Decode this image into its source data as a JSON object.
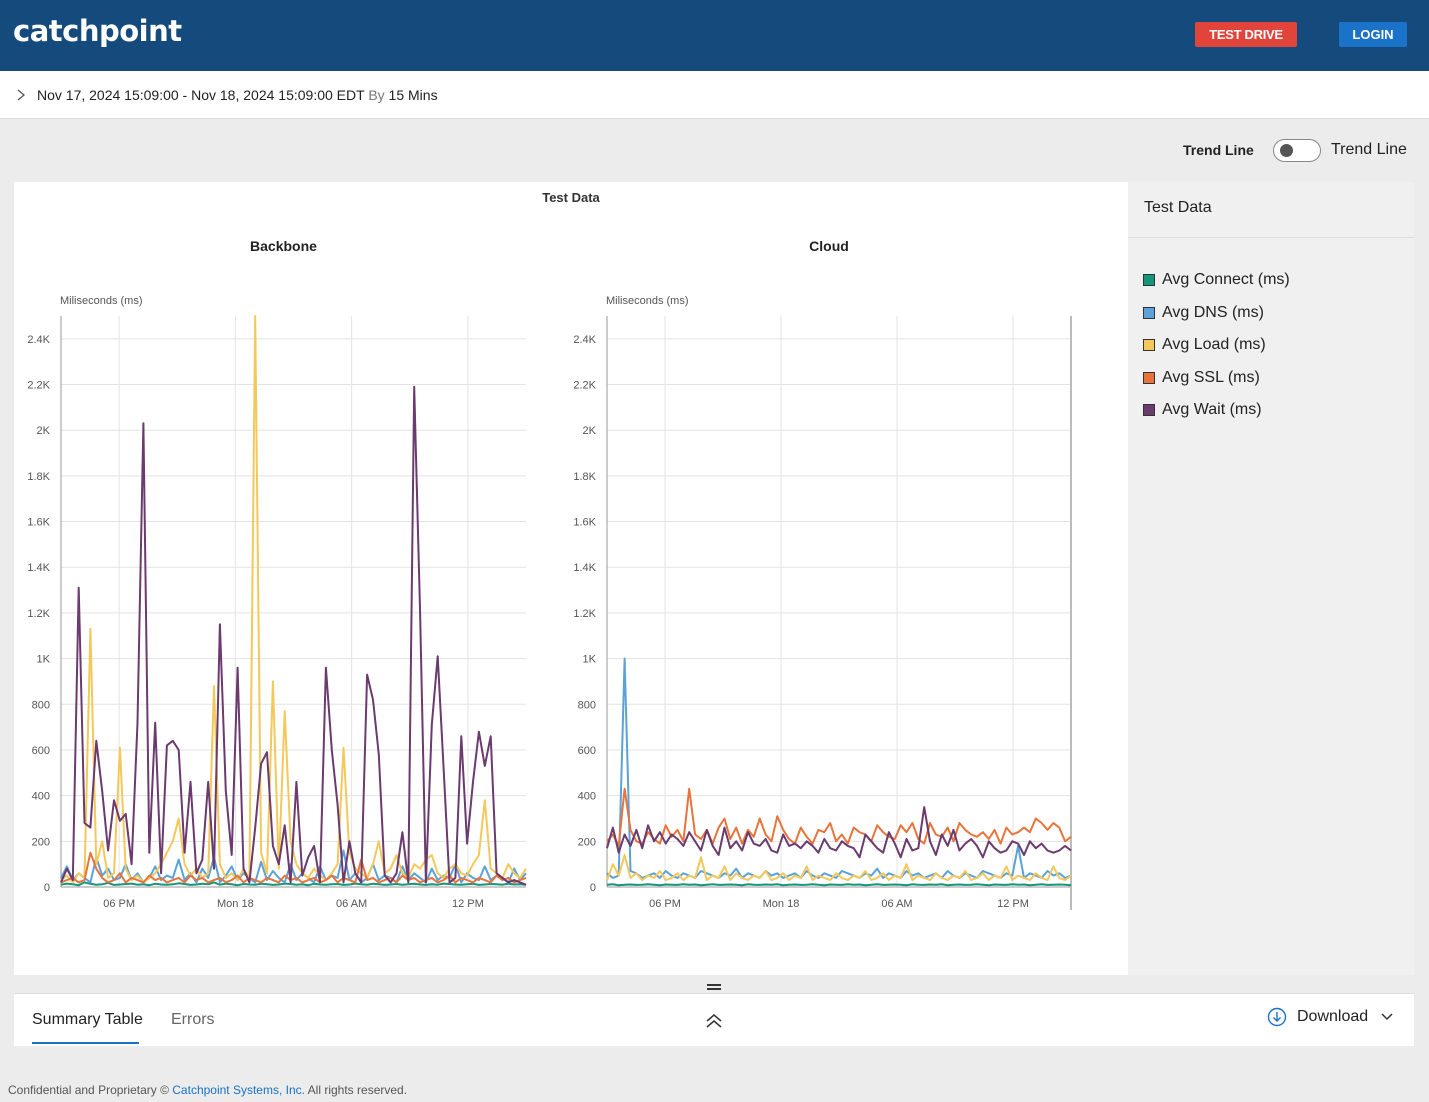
{
  "app": {
    "logo_text": "catchpoint",
    "test_drive_label": "TEST DRIVE",
    "login_label": "LOGIN"
  },
  "date_range": {
    "range_text": "Nov 17, 2024 15:09:00 - Nov 18, 2024 15:09:00 EDT",
    "by_label": "By",
    "interval": "15 Mins"
  },
  "trend": {
    "label_bold": "Trend Line",
    "label": "Trend Line",
    "enabled": false
  },
  "legend": {
    "title": "Test Data",
    "items": [
      {
        "label": "Avg Connect (ms)",
        "color": "#14967a"
      },
      {
        "label": "Avg DNS (ms)",
        "color": "#5aa2d8"
      },
      {
        "label": "Avg Load (ms)",
        "color": "#f4c85a"
      },
      {
        "label": "Avg SSL (ms)",
        "color": "#e8743b"
      },
      {
        "label": "Avg Wait (ms)",
        "color": "#6b3a6e"
      }
    ]
  },
  "chart_data": [
    {
      "type": "line",
      "group_title": "Test Data",
      "title": "Backbone",
      "ylabel": "Miliseconds (ms)",
      "ylim": [
        0,
        2500
      ],
      "yticks": [
        "0",
        "200",
        "400",
        "600",
        "800",
        "1K",
        "1.2K",
        "1.4K",
        "1.6K",
        "1.8K",
        "2K",
        "2.2K",
        "2.4K"
      ],
      "xticks": [
        "06 PM",
        "Mon 18",
        "06 AM",
        "12 PM"
      ],
      "grid": true,
      "series": [
        {
          "name": "Avg Connect (ms)",
          "color": "#14967a",
          "values": [
            10,
            15,
            12,
            8,
            20,
            14,
            10,
            12,
            18,
            9,
            11,
            13,
            15,
            10,
            12,
            8,
            14,
            11,
            10,
            12,
            16,
            13,
            9,
            11,
            14,
            12,
            20,
            10,
            15,
            12,
            8,
            13,
            11,
            10,
            14,
            12,
            9,
            11,
            15,
            13,
            10,
            12,
            8,
            14,
            11,
            10,
            12,
            13,
            9,
            11,
            15,
            12,
            10,
            14,
            12,
            9,
            11,
            13,
            10,
            12,
            14,
            11,
            9,
            12,
            10,
            15,
            13,
            11,
            10,
            12,
            14,
            9,
            11,
            13,
            12,
            10,
            15,
            11,
            12,
            10
          ]
        },
        {
          "name": "Avg DNS (ms)",
          "color": "#5aa2d8",
          "values": [
            40,
            90,
            30,
            60,
            40,
            20,
            130,
            50,
            80,
            30,
            40,
            100,
            30,
            60,
            20,
            40,
            90,
            30,
            50,
            40,
            120,
            30,
            60,
            20,
            80,
            40,
            130,
            20,
            50,
            90,
            30,
            60,
            40,
            20,
            110,
            30,
            70,
            40,
            20,
            100,
            30,
            60,
            40,
            20,
            90,
            30,
            50,
            40,
            160,
            30,
            60,
            20,
            40,
            100,
            30,
            50,
            40,
            20,
            90,
            30,
            60,
            40,
            20,
            80,
            30,
            50,
            40,
            100,
            20,
            60,
            40,
            30,
            90,
            30,
            50,
            40,
            20,
            80,
            30,
            60
          ]
        },
        {
          "name": "Avg Load (ms)",
          "color": "#f4c85a",
          "values": [
            30,
            50,
            20,
            60,
            40,
            1130,
            100,
            200,
            40,
            60,
            610,
            80,
            30,
            50,
            20,
            40,
            60,
            100,
            150,
            200,
            300,
            100,
            50,
            80,
            40,
            60,
            880,
            100,
            40,
            60,
            30,
            80,
            40,
            2500,
            150,
            60,
            900,
            80,
            770,
            200,
            100,
            60,
            40,
            80,
            50,
            30,
            60,
            100,
            610,
            150,
            80,
            60,
            40,
            100,
            200,
            60,
            80,
            140,
            60,
            40,
            100,
            80,
            120,
            140,
            60,
            40,
            80,
            100,
            60,
            50,
            100,
            140,
            380,
            80,
            60,
            40,
            100,
            60,
            40,
            80
          ]
        },
        {
          "name": "Avg SSL (ms)",
          "color": "#e8743b",
          "values": [
            20,
            30,
            40,
            20,
            30,
            150,
            80,
            40,
            20,
            30,
            60,
            20,
            40,
            30,
            20,
            50,
            30,
            40,
            20,
            30,
            40,
            20,
            50,
            30,
            40,
            20,
            30,
            40,
            20,
            30,
            50,
            20,
            40,
            30,
            20,
            40,
            30,
            20,
            50,
            30,
            40,
            20,
            30,
            40,
            20,
            30,
            50,
            20,
            40,
            30,
            20,
            120,
            30,
            40,
            20,
            30,
            40,
            20,
            50,
            30,
            40,
            20,
            30,
            40,
            20,
            30,
            50,
            20,
            40,
            30,
            20,
            40,
            30,
            20,
            50,
            30,
            40,
            20,
            30,
            40
          ]
        },
        {
          "name": "Avg Wait (ms)",
          "color": "#6b3a6e",
          "values": [
            20,
            80,
            30,
            1310,
            280,
            260,
            640,
            420,
            160,
            380,
            290,
            320,
            100,
            720,
            2030,
            150,
            720,
            60,
            620,
            640,
            600,
            150,
            460,
            60,
            120,
            460,
            80,
            1150,
            420,
            140,
            960,
            80,
            20,
            260,
            540,
            590,
            180,
            100,
            270,
            20,
            460,
            50,
            130,
            180,
            20,
            960,
            600,
            360,
            20,
            200,
            60,
            20,
            930,
            820,
            580,
            50,
            20,
            60,
            240,
            20,
            2190,
            1200,
            20,
            710,
            1010,
            520,
            20,
            40,
            660,
            190,
            460,
            680,
            530,
            660,
            60,
            40,
            20,
            30,
            20,
            10
          ]
        }
      ]
    },
    {
      "type": "line",
      "title": "Cloud",
      "ylabel": "Miliseconds (ms)",
      "ylim": [
        0,
        2500
      ],
      "yticks": [
        "0",
        "200",
        "400",
        "600",
        "800",
        "1K",
        "1.2K",
        "1.4K",
        "1.6K",
        "1.8K",
        "2K",
        "2.2K",
        "2.4K"
      ],
      "xticks": [
        "06 PM",
        "Mon 18",
        "06 AM",
        "12 PM"
      ],
      "grid": true,
      "series": [
        {
          "name": "Avg Connect (ms)",
          "color": "#14967a",
          "values": [
            10,
            12,
            8,
            10,
            11,
            9,
            10,
            12,
            10,
            8,
            11,
            10,
            9,
            12,
            10,
            11,
            8,
            10,
            12,
            9,
            10,
            11,
            10,
            8,
            12,
            10,
            9,
            11,
            10,
            12,
            8,
            10,
            11,
            9,
            10,
            12,
            10,
            8,
            11,
            10,
            9,
            12,
            10,
            11,
            8,
            10,
            12,
            9,
            10,
            11,
            10,
            8,
            12,
            10,
            9,
            11,
            10,
            12,
            8,
            10,
            11,
            9,
            10,
            12,
            10,
            8,
            11,
            10,
            9,
            12,
            10,
            11,
            8,
            10,
            12,
            9,
            10,
            11,
            10,
            8
          ]
        },
        {
          "name": "Avg DNS (ms)",
          "color": "#5aa2d8",
          "values": [
            60,
            40,
            50,
            1000,
            70,
            60,
            40,
            50,
            60,
            40,
            70,
            50,
            40,
            60,
            50,
            40,
            70,
            60,
            50,
            40,
            60,
            50,
            80,
            40,
            60,
            50,
            40,
            70,
            50,
            60,
            40,
            50,
            60,
            40,
            70,
            50,
            40,
            60,
            50,
            40,
            70,
            60,
            50,
            40,
            60,
            50,
            80,
            40,
            60,
            50,
            40,
            70,
            50,
            60,
            40,
            50,
            60,
            40,
            70,
            50,
            40,
            60,
            50,
            40,
            70,
            60,
            50,
            40,
            60,
            50,
            180,
            40,
            60,
            50,
            40,
            70,
            50,
            60,
            40,
            50
          ]
        },
        {
          "name": "Avg Load (ms)",
          "color": "#f4c85a",
          "values": [
            30,
            100,
            50,
            140,
            40,
            60,
            30,
            50,
            40,
            70,
            30,
            40,
            60,
            30,
            50,
            40,
            130,
            30,
            50,
            40,
            90,
            30,
            60,
            40,
            30,
            50,
            40,
            70,
            30,
            40,
            60,
            30,
            50,
            40,
            90,
            30,
            50,
            40,
            30,
            60,
            40,
            30,
            50,
            40,
            70,
            30,
            40,
            60,
            30,
            50,
            40,
            100,
            30,
            50,
            40,
            30,
            60,
            40,
            30,
            50,
            40,
            70,
            30,
            40,
            60,
            30,
            50,
            40,
            90,
            30,
            50,
            40,
            30,
            60,
            40,
            30,
            90,
            40,
            30,
            50
          ]
        },
        {
          "name": "Avg SSL (ms)",
          "color": "#e8743b",
          "values": [
            200,
            230,
            180,
            430,
            250,
            200,
            190,
            240,
            210,
            190,
            270,
            220,
            250,
            200,
            430,
            230,
            210,
            250,
            190,
            260,
            300,
            210,
            260,
            190,
            250,
            220,
            300,
            230,
            200,
            310,
            250,
            210,
            190,
            260,
            220,
            190,
            250,
            240,
            280,
            200,
            230,
            190,
            260,
            240,
            230,
            200,
            270,
            240,
            220,
            210,
            270,
            240,
            280,
            210,
            190,
            280,
            230,
            220,
            260,
            200,
            280,
            250,
            230,
            220,
            240,
            210,
            250,
            190,
            260,
            230,
            240,
            260,
            240,
            300,
            280,
            250,
            280,
            260,
            200,
            220
          ]
        },
        {
          "name": "Avg Wait (ms)",
          "color": "#6b3a6e",
          "values": [
            170,
            260,
            150,
            230,
            180,
            250,
            170,
            270,
            200,
            240,
            190,
            230,
            210,
            180,
            240,
            200,
            160,
            250,
            180,
            140,
            260,
            170,
            200,
            160,
            240,
            190,
            180,
            210,
            160,
            150,
            230,
            180,
            190,
            170,
            200,
            180,
            150,
            210,
            170,
            160,
            200,
            180,
            170,
            130,
            230,
            200,
            170,
            150,
            240,
            190,
            130,
            210,
            160,
            170,
            350,
            200,
            140,
            230,
            180,
            250,
            160,
            190,
            210,
            180,
            130,
            200,
            170,
            150,
            160,
            200,
            190,
            140,
            200,
            170,
            190,
            160,
            150,
            160,
            180,
            160
          ]
        }
      ]
    }
  ],
  "bottom": {
    "tab_summary": "Summary Table",
    "tab_errors": "Errors",
    "download_label": "Download"
  },
  "footer": {
    "prefix": "Confidential and Proprietary © ",
    "company_link": "Catchpoint Systems, Inc.",
    "suffix": " All rights reserved."
  }
}
